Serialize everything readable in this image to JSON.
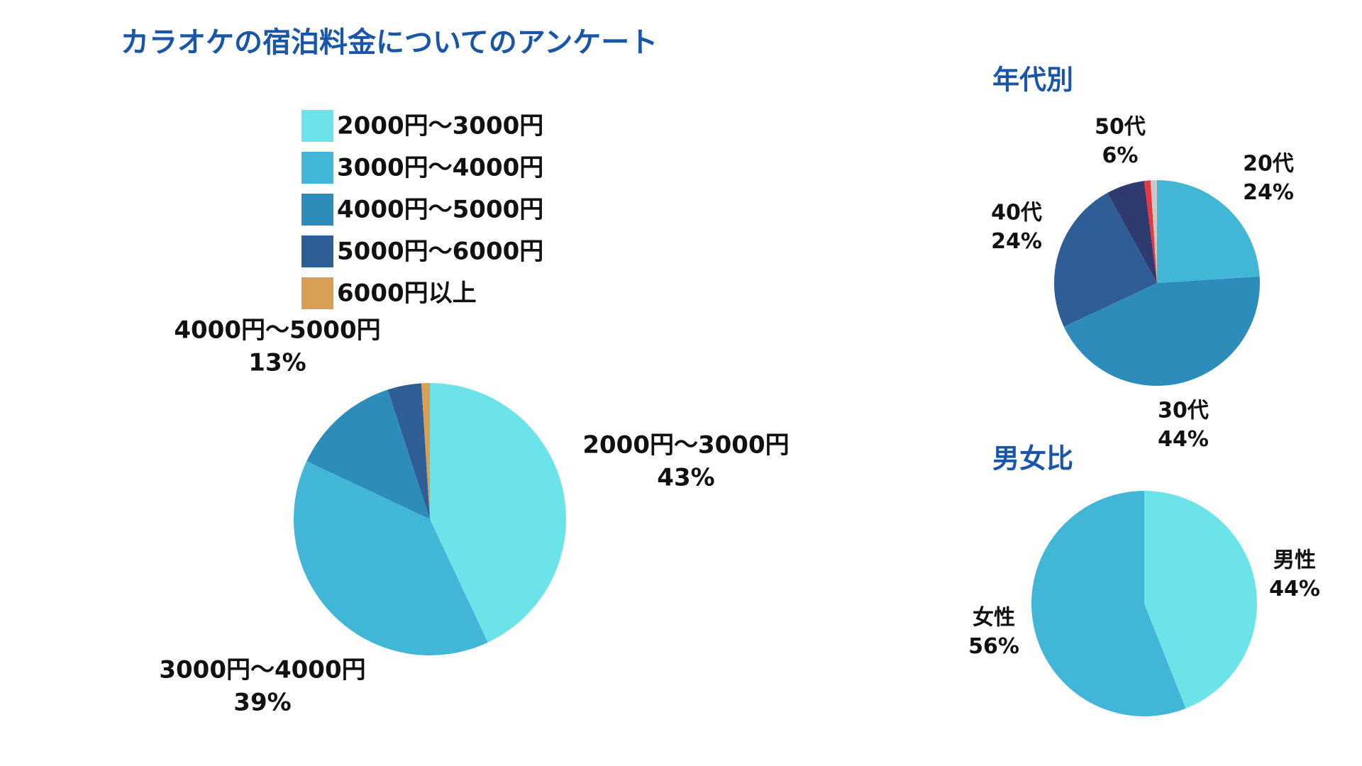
{
  "chart_data": [
    {
      "type": "pie",
      "title": "カラオケの宿泊料金についてのアンケート",
      "legend": true,
      "categories": [
        "2000円〜3000円",
        "3000円〜4000円",
        "4000円〜5000円",
        "5000円〜6000円",
        "6000円以上"
      ],
      "values": [
        43,
        39,
        13,
        4,
        1
      ],
      "value_labels": [
        "43%",
        "39%",
        "13%",
        null,
        null
      ],
      "colors": [
        "#6ce3e8",
        "#41b6d6",
        "#2e8cbb",
        "#2f5e96",
        "#d9a055"
      ]
    },
    {
      "type": "pie",
      "title": "年代別",
      "legend": false,
      "categories": [
        "20代",
        "30代",
        "40代",
        "50代",
        null,
        null
      ],
      "values": [
        24,
        44,
        24,
        6,
        1,
        1
      ],
      "value_labels": [
        "24%",
        "44%",
        "24%",
        "6%",
        null,
        null
      ],
      "colors": [
        "#41b6d6",
        "#2e8cbb",
        "#2f5e96",
        "#2f3a6e",
        "#e8383d",
        "#c8c8c8"
      ]
    },
    {
      "type": "pie",
      "title": "男女比",
      "legend": false,
      "categories": [
        "男性",
        "女性"
      ],
      "values": [
        44,
        56
      ],
      "value_labels": [
        "44%",
        "56%"
      ],
      "colors": [
        "#6ce3e8",
        "#41b6d6"
      ]
    }
  ]
}
